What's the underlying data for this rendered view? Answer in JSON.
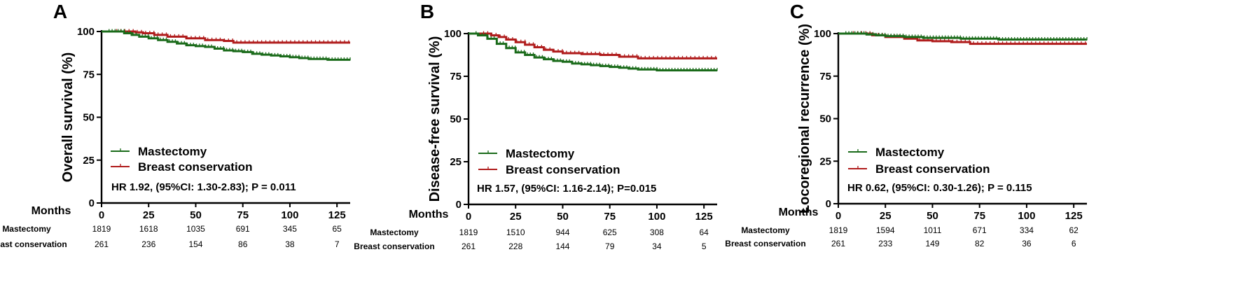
{
  "chart_data": [
    {
      "type": "line",
      "subtype": "kaplan-meier",
      "panel_label": "A",
      "ylabel": "Overall survival (%)",
      "xlabel": "Months",
      "xlim": [
        0,
        132
      ],
      "ylim": [
        0,
        100
      ],
      "xticks": [
        0,
        25,
        50,
        75,
        100,
        125
      ],
      "yticks": [
        0,
        25,
        50,
        75,
        100
      ],
      "legend": [
        "Mastectomy",
        "Breast conservation"
      ],
      "annotation": "HR 1.92, (95%CI: 1.30-2.83); P = 0.011",
      "series": [
        {
          "name": "Mastectomy",
          "color": "#1a6b1a",
          "x": [
            0,
            8,
            12,
            16,
            20,
            25,
            30,
            35,
            40,
            45,
            50,
            55,
            60,
            65,
            70,
            75,
            80,
            85,
            90,
            95,
            100,
            105,
            110,
            115,
            120,
            125,
            132
          ],
          "y": [
            100,
            100,
            99,
            98,
            97,
            96,
            95,
            94,
            93,
            92,
            91.5,
            91,
            90,
            89,
            88.5,
            88,
            87,
            86.5,
            86,
            85.5,
            85,
            84.5,
            84,
            84,
            83.5,
            83.5,
            83.5
          ]
        },
        {
          "name": "Breast conservation",
          "color": "#b01c1c",
          "x": [
            0,
            12,
            18,
            22,
            28,
            35,
            45,
            55,
            65,
            70,
            75,
            132
          ],
          "y": [
            100,
            100,
            99.5,
            99,
            98,
            97,
            96,
            95,
            94.5,
            93.5,
            93.5,
            93.5
          ]
        }
      ],
      "risk_table": {
        "header": "Months",
        "timepoints": [
          0,
          25,
          50,
          75,
          100,
          125
        ],
        "rows": [
          {
            "label": "Mastectomy",
            "values": [
              "1819",
              "1618",
              "1035",
              "691",
              "345",
              "65"
            ]
          },
          {
            "label": "Breast conservation",
            "values": [
              "261",
              "236",
              "154",
              "86",
              "38",
              "7"
            ]
          }
        ]
      }
    },
    {
      "type": "line",
      "subtype": "kaplan-meier",
      "panel_label": "B",
      "ylabel": "Disease-free survival (%)",
      "xlabel": "Months",
      "xlim": [
        0,
        132
      ],
      "ylim": [
        0,
        100
      ],
      "xticks": [
        0,
        25,
        50,
        75,
        100,
        125
      ],
      "yticks": [
        0,
        25,
        50,
        75,
        100
      ],
      "legend": [
        "Mastectomy",
        "Breast conservation"
      ],
      "annotation": "HR 1.57, (95%CI: 1.16-2.14); P=0.015",
      "series": [
        {
          "name": "Mastectomy",
          "color": "#1a6b1a",
          "x": [
            0,
            5,
            10,
            15,
            20,
            25,
            30,
            35,
            40,
            45,
            50,
            55,
            60,
            65,
            70,
            75,
            80,
            85,
            90,
            95,
            100,
            110,
            120,
            132
          ],
          "y": [
            100,
            99,
            97,
            94,
            91.5,
            89,
            87.5,
            86,
            85,
            84,
            83.5,
            82.5,
            82,
            81.5,
            81,
            80.5,
            80,
            79.5,
            79,
            79,
            78.5,
            78.5,
            78.5,
            78.5
          ]
        },
        {
          "name": "Breast conservation",
          "color": "#b01c1c",
          "x": [
            0,
            8,
            12,
            16,
            20,
            25,
            30,
            35,
            40,
            45,
            50,
            60,
            70,
            80,
            90,
            132
          ],
          "y": [
            100,
            100,
            99,
            98,
            96.5,
            95,
            93.5,
            92,
            90.5,
            89.5,
            88.5,
            88,
            87.5,
            86.5,
            85.5,
            85.5
          ]
        }
      ],
      "risk_table": {
        "header": "Months",
        "timepoints": [
          0,
          25,
          50,
          75,
          100,
          125
        ],
        "rows": [
          {
            "label": "Mastectomy",
            "values": [
              "1819",
              "1510",
              "944",
              "625",
              "308",
              "64"
            ]
          },
          {
            "label": "Breast conservation",
            "values": [
              "261",
              "228",
              "144",
              "79",
              "34",
              "5"
            ]
          }
        ]
      }
    },
    {
      "type": "line",
      "subtype": "kaplan-meier",
      "panel_label": "C",
      "ylabel": "Locoregional recurrence (%)",
      "xlabel": "Months",
      "xlim": [
        0,
        132
      ],
      "ylim": [
        0,
        100
      ],
      "xticks": [
        0,
        25,
        50,
        75,
        100,
        125
      ],
      "yticks": [
        0,
        25,
        50,
        75,
        100
      ],
      "legend": [
        "Mastectomy",
        "Breast conservation"
      ],
      "annotation": "HR 0.62, (95%CI: 0.30-1.26); P = 0.115",
      "series": [
        {
          "name": "Mastectomy",
          "color": "#1a6b1a",
          "x": [
            0,
            10,
            15,
            20,
            25,
            35,
            45,
            55,
            65,
            75,
            85,
            100,
            115,
            132
          ],
          "y": [
            100,
            100,
            99.5,
            99,
            98.5,
            98,
            97.5,
            97.5,
            97,
            97,
            96.5,
            96.5,
            96.5,
            96.5
          ]
        },
        {
          "name": "Breast conservation",
          "color": "#b01c1c",
          "x": [
            0,
            10,
            18,
            25,
            35,
            42,
            50,
            60,
            70,
            132
          ],
          "y": [
            100,
            100,
            99,
            98,
            97,
            96,
            95.5,
            95,
            94,
            94
          ]
        }
      ],
      "risk_table": {
        "header": "Months",
        "timepoints": [
          0,
          25,
          50,
          75,
          100,
          125
        ],
        "rows": [
          {
            "label": "Mastectomy",
            "values": [
              "1819",
              "1594",
              "1011",
              "671",
              "334",
              "62"
            ]
          },
          {
            "label": "Breast conservation",
            "values": [
              "261",
              "233",
              "149",
              "82",
              "36",
              "6"
            ]
          }
        ]
      }
    }
  ]
}
